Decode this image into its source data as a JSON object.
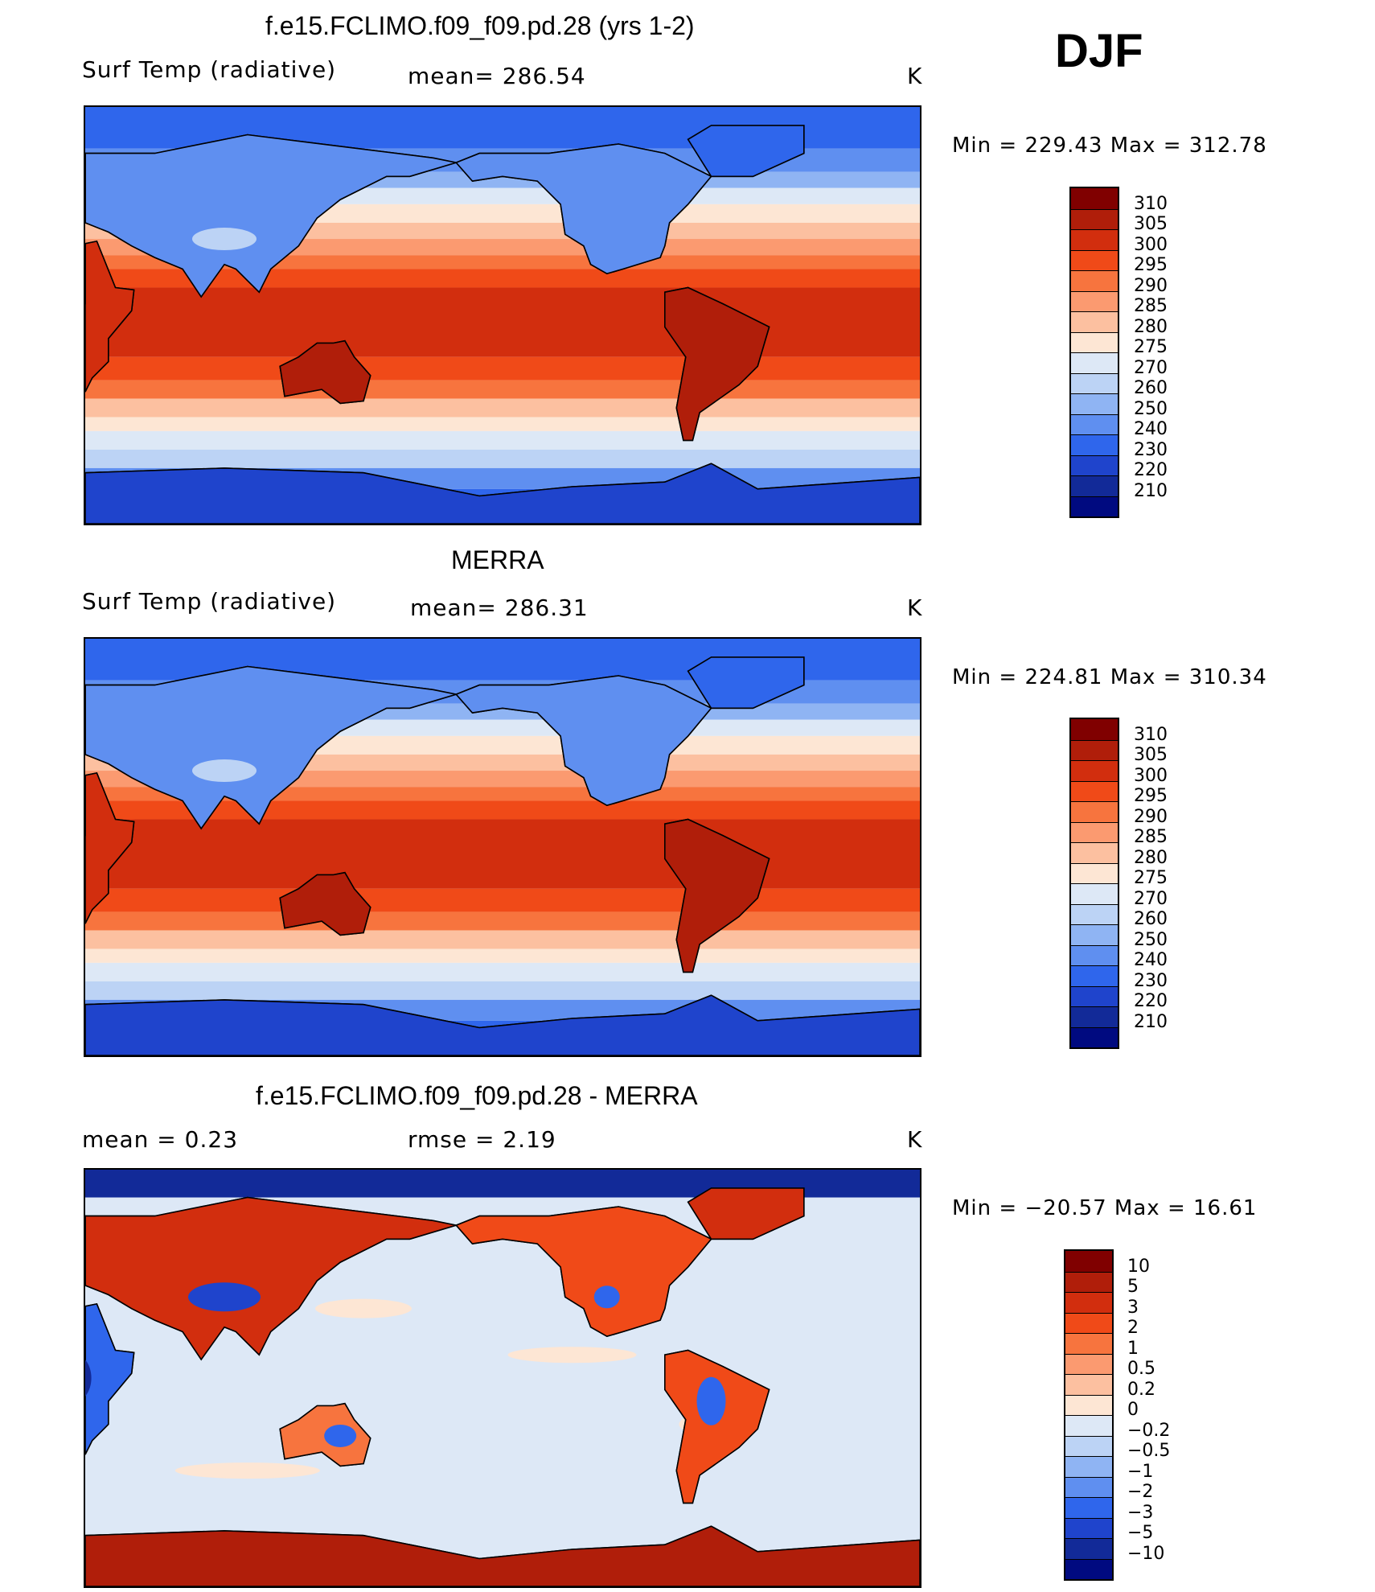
{
  "season": "DJF",
  "panels": [
    {
      "title": "f.e15.FCLIMO.f09_f09.pd.28 (yrs 1-2)",
      "left_label": "Surf Temp (radiative)",
      "mid_label": "mean=  286.54",
      "units": "K",
      "minmax": "Min  =  229.43  Max  =  312.78",
      "kind": "abs"
    },
    {
      "title": "MERRA",
      "left_label": "Surf Temp (radiative)",
      "mid_label": "mean=  286.31",
      "units": "K",
      "minmax": "Min  =  224.81  Max  =  310.34",
      "kind": "abs"
    },
    {
      "title": "f.e15.FCLIMO.f09_f09.pd.28 - MERRA",
      "left_label": "mean  =     0.23",
      "mid_label": "rmse  =     2.19",
      "units": "K",
      "minmax": "Min  =  −20.57  Max  =    16.61",
      "kind": "diff"
    }
  ],
  "colorbar_abs": {
    "labels": [
      "310",
      "305",
      "300",
      "295",
      "290",
      "285",
      "280",
      "275",
      "270",
      "260",
      "250",
      "240",
      "230",
      "220",
      "210"
    ],
    "colors": [
      "#800000",
      "#b01e0a",
      "#d22e0e",
      "#f04a18",
      "#f7743e",
      "#fb9a70",
      "#fcc0a0",
      "#fde6d4",
      "#dde8f6",
      "#bcd3f5",
      "#8fb4f3",
      "#5f8ff0",
      "#2f66ec",
      "#1f44cc",
      "#122a98",
      "#000a80"
    ]
  },
  "colorbar_diff": {
    "labels": [
      "10",
      "5",
      "3",
      "2",
      "1",
      "0.5",
      "0.2",
      "0",
      "−0.2",
      "−0.5",
      "−1",
      "−2",
      "−3",
      "−5",
      "−10"
    ],
    "colors": [
      "#800000",
      "#b01e0a",
      "#d22e0e",
      "#f04a18",
      "#f7743e",
      "#fb9a70",
      "#fcc0a0",
      "#fde6d4",
      "#dde8f6",
      "#bcd3f5",
      "#8fb4f3",
      "#5f8ff0",
      "#2f66ec",
      "#1f44cc",
      "#122a98",
      "#000a80"
    ]
  },
  "chart_data": [
    {
      "type": "heatmap",
      "title": "f.e15.FCLIMO.f09_f09.pd.28 (yrs 1-2)",
      "variable": "Surf Temp (radiative)",
      "mean": 286.54,
      "units": "K",
      "min": 229.43,
      "max": 312.78,
      "levels": [
        210,
        220,
        230,
        240,
        250,
        260,
        270,
        275,
        280,
        285,
        290,
        295,
        300,
        305,
        310
      ]
    },
    {
      "type": "heatmap",
      "title": "MERRA",
      "variable": "Surf Temp (radiative)",
      "mean": 286.31,
      "units": "K",
      "min": 224.81,
      "max": 310.34,
      "levels": [
        210,
        220,
        230,
        240,
        250,
        260,
        270,
        275,
        280,
        285,
        290,
        295,
        300,
        305,
        310
      ]
    },
    {
      "type": "heatmap",
      "title": "f.e15.FCLIMO.f09_f09.pd.28 - MERRA",
      "mean": 0.23,
      "rmse": 2.19,
      "units": "K",
      "min": -20.57,
      "max": 16.61,
      "levels": [
        -10,
        -5,
        -3,
        -2,
        -1,
        -0.5,
        -0.2,
        0,
        0.2,
        0.5,
        1,
        2,
        3,
        5,
        10
      ]
    }
  ]
}
